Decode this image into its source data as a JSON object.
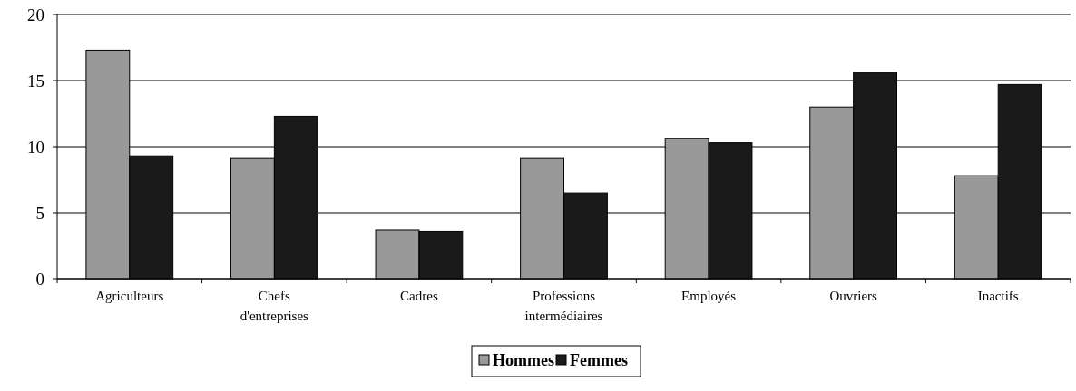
{
  "chart_data": {
    "type": "bar",
    "categories": [
      "Agriculteurs",
      "Chefs d'entreprises",
      "Cadres",
      "Professions intermédiaires",
      "Employés",
      "Ouvriers",
      "Inactifs"
    ],
    "series": [
      {
        "name": "Hommes",
        "color": "#999999",
        "values": [
          17.3,
          9.1,
          3.7,
          9.1,
          10.6,
          13.0,
          7.8
        ]
      },
      {
        "name": "Femmes",
        "color": "#1a1a1a",
        "values": [
          9.3,
          12.3,
          3.6,
          6.5,
          10.3,
          15.6,
          14.7
        ]
      }
    ],
    "ylim": [
      0,
      20
    ],
    "yticks": [
      0,
      5,
      10,
      15,
      20
    ],
    "grid": "y",
    "legend": "bottom"
  }
}
